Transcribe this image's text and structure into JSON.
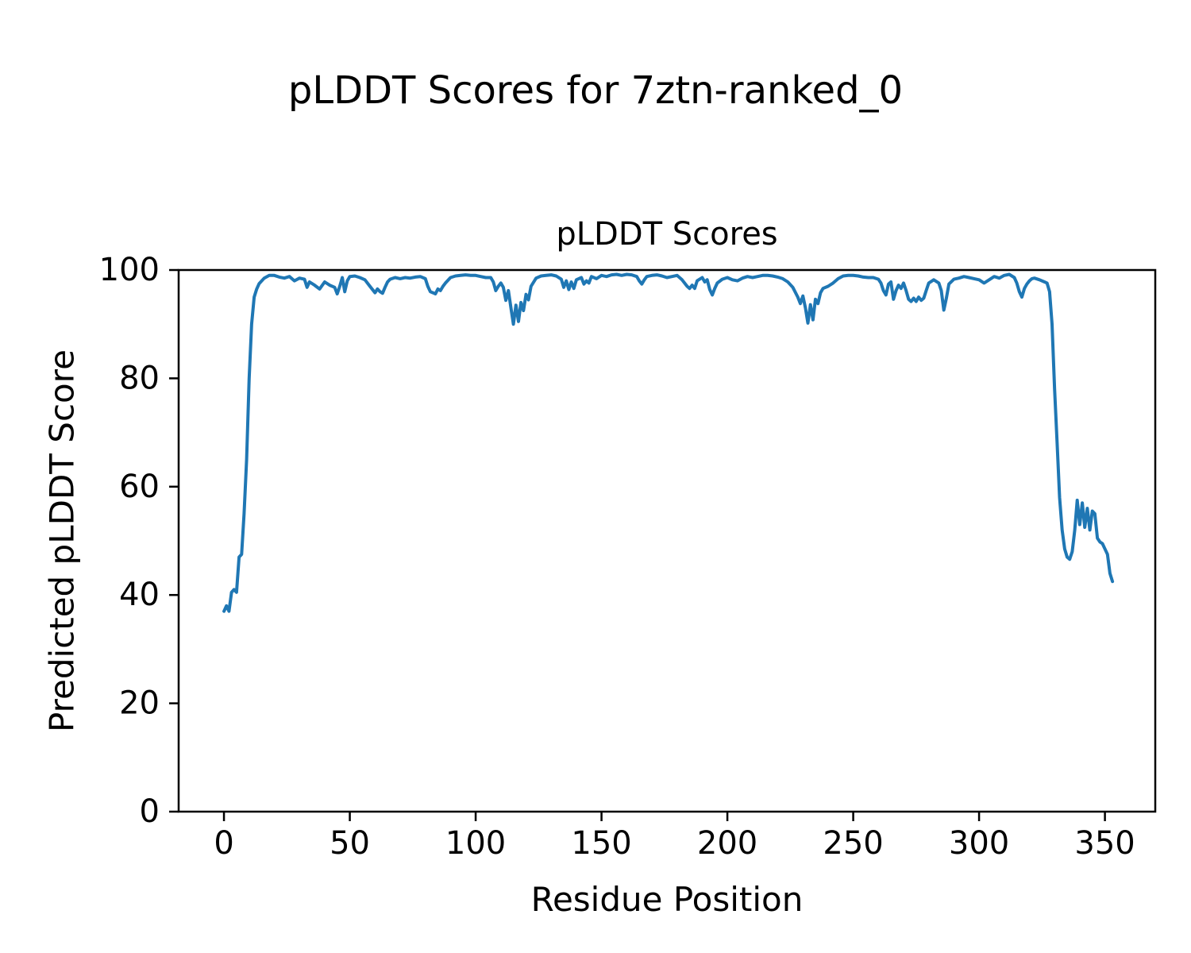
{
  "figure": {
    "title": "pLDDT Scores for 7ztn-ranked_0"
  },
  "chart_data": {
    "type": "line",
    "title": "pLDDT Scores",
    "xlabel": "Residue Position",
    "ylabel": "Predicted pLDDT Score",
    "xlim": [
      -18,
      370
    ],
    "ylim": [
      0,
      100
    ],
    "x_ticks": [
      0,
      50,
      100,
      150,
      200,
      250,
      300,
      350
    ],
    "y_ticks": [
      0,
      20,
      40,
      60,
      80,
      100
    ],
    "grid": false,
    "legend_position": "none",
    "line_color": "#1f77b4",
    "line_width": 4,
    "series": [
      {
        "name": "pLDDT",
        "points": [
          [
            0,
            37
          ],
          [
            1,
            38
          ],
          [
            2,
            37
          ],
          [
            3,
            40.5
          ],
          [
            4,
            41
          ],
          [
            5,
            40.5
          ],
          [
            6,
            47
          ],
          [
            7,
            47.5
          ],
          [
            8,
            55
          ],
          [
            9,
            65
          ],
          [
            10,
            80
          ],
          [
            11,
            90
          ],
          [
            12,
            95
          ],
          [
            13,
            96.5
          ],
          [
            14,
            97.5
          ],
          [
            16,
            98.5
          ],
          [
            18,
            99
          ],
          [
            20,
            99
          ],
          [
            22,
            98.7
          ],
          [
            24,
            98.5
          ],
          [
            26,
            98.8
          ],
          [
            28,
            98
          ],
          [
            30,
            98.5
          ],
          [
            32,
            98.3
          ],
          [
            33,
            96.8
          ],
          [
            34,
            97.8
          ],
          [
            36,
            97.2
          ],
          [
            38,
            96.5
          ],
          [
            40,
            97.8
          ],
          [
            42,
            97.2
          ],
          [
            44,
            96.8
          ],
          [
            45,
            95.6
          ],
          [
            46,
            97
          ],
          [
            47,
            98.6
          ],
          [
            48,
            96
          ],
          [
            49,
            98
          ],
          [
            50,
            98.8
          ],
          [
            52,
            98.9
          ],
          [
            54,
            98.6
          ],
          [
            56,
            98.2
          ],
          [
            58,
            97
          ],
          [
            60,
            95.8
          ],
          [
            61,
            96.5
          ],
          [
            62,
            96
          ],
          [
            63,
            95.7
          ],
          [
            64,
            96.8
          ],
          [
            65,
            97.8
          ],
          [
            66,
            98.3
          ],
          [
            68,
            98.6
          ],
          [
            70,
            98.4
          ],
          [
            72,
            98.6
          ],
          [
            74,
            98.5
          ],
          [
            76,
            98.7
          ],
          [
            78,
            98.8
          ],
          [
            80,
            98.4
          ],
          [
            81,
            97
          ],
          [
            82,
            96
          ],
          [
            83,
            95.8
          ],
          [
            84,
            95.6
          ],
          [
            85,
            96.5
          ],
          [
            86,
            96.2
          ],
          [
            87,
            97
          ],
          [
            88,
            97.6
          ],
          [
            90,
            98.6
          ],
          [
            92,
            98.9
          ],
          [
            94,
            99
          ],
          [
            96,
            99.1
          ],
          [
            98,
            99
          ],
          [
            100,
            99
          ],
          [
            102,
            98.8
          ],
          [
            104,
            98.6
          ],
          [
            106,
            98.6
          ],
          [
            107,
            97.8
          ],
          [
            108,
            96.2
          ],
          [
            109,
            97
          ],
          [
            110,
            97.6
          ],
          [
            111,
            96.8
          ],
          [
            112,
            94.4
          ],
          [
            113,
            96.2
          ],
          [
            114,
            93
          ],
          [
            115,
            90
          ],
          [
            116,
            93.5
          ],
          [
            117,
            90.5
          ],
          [
            118,
            94
          ],
          [
            119,
            92.5
          ],
          [
            120,
            95.5
          ],
          [
            121,
            94.5
          ],
          [
            122,
            97
          ],
          [
            124,
            98.5
          ],
          [
            126,
            98.9
          ],
          [
            128,
            99
          ],
          [
            130,
            99.1
          ],
          [
            132,
            98.9
          ],
          [
            134,
            98.3
          ],
          [
            135,
            96.8
          ],
          [
            136,
            98
          ],
          [
            137,
            96.4
          ],
          [
            138,
            97.8
          ],
          [
            139,
            96.6
          ],
          [
            140,
            98.2
          ],
          [
            142,
            98.6
          ],
          [
            143,
            97.4
          ],
          [
            144,
            98
          ],
          [
            145,
            97.6
          ],
          [
            146,
            98.8
          ],
          [
            148,
            98.4
          ],
          [
            150,
            99
          ],
          [
            152,
            98.8
          ],
          [
            154,
            99.1
          ],
          [
            156,
            99.2
          ],
          [
            158,
            99
          ],
          [
            160,
            99.2
          ],
          [
            162,
            99.1
          ],
          [
            164,
            98.8
          ],
          [
            165,
            98
          ],
          [
            166,
            97.4
          ],
          [
            167,
            98.2
          ],
          [
            168,
            98.8
          ],
          [
            170,
            99
          ],
          [
            172,
            99.1
          ],
          [
            174,
            98.9
          ],
          [
            176,
            98.6
          ],
          [
            178,
            98.8
          ],
          [
            180,
            99
          ],
          [
            182,
            98.2
          ],
          [
            184,
            97
          ],
          [
            185,
            96.6
          ],
          [
            186,
            97.2
          ],
          [
            187,
            96.6
          ],
          [
            188,
            98
          ],
          [
            190,
            98.6
          ],
          [
            191,
            97.8
          ],
          [
            192,
            98.2
          ],
          [
            193,
            96.4
          ],
          [
            194,
            95.4
          ],
          [
            195,
            96.6
          ],
          [
            196,
            97.6
          ],
          [
            198,
            98.3
          ],
          [
            200,
            98.6
          ],
          [
            202,
            98.2
          ],
          [
            204,
            98
          ],
          [
            206,
            98.5
          ],
          [
            208,
            98.8
          ],
          [
            210,
            98.6
          ],
          [
            212,
            98.8
          ],
          [
            214,
            99
          ],
          [
            216,
            99
          ],
          [
            218,
            98.9
          ],
          [
            220,
            98.7
          ],
          [
            222,
            98.4
          ],
          [
            224,
            97.8
          ],
          [
            226,
            96.8
          ],
          [
            228,
            95
          ],
          [
            229,
            93.8
          ],
          [
            230,
            95.2
          ],
          [
            231,
            93
          ],
          [
            232,
            90.2
          ],
          [
            233,
            93.6
          ],
          [
            234,
            90.8
          ],
          [
            235,
            94.6
          ],
          [
            236,
            93.8
          ],
          [
            237,
            95.8
          ],
          [
            238,
            96.6
          ],
          [
            240,
            97
          ],
          [
            242,
            97.6
          ],
          [
            244,
            98.4
          ],
          [
            246,
            98.9
          ],
          [
            248,
            99
          ],
          [
            250,
            99
          ],
          [
            252,
            98.9
          ],
          [
            254,
            98.7
          ],
          [
            256,
            98.6
          ],
          [
            258,
            98.6
          ],
          [
            260,
            98.3
          ],
          [
            261,
            97.6
          ],
          [
            262,
            96.2
          ],
          [
            263,
            95.4
          ],
          [
            264,
            97.4
          ],
          [
            265,
            97.8
          ],
          [
            266,
            94.6
          ],
          [
            267,
            96.2
          ],
          [
            268,
            97.2
          ],
          [
            269,
            96.6
          ],
          [
            270,
            97.6
          ],
          [
            271,
            96.2
          ],
          [
            272,
            94.6
          ],
          [
            273,
            94.2
          ],
          [
            274,
            94.8
          ],
          [
            275,
            94.2
          ],
          [
            276,
            95
          ],
          [
            277,
            94.4
          ],
          [
            278,
            94.8
          ],
          [
            279,
            96.2
          ],
          [
            280,
            97.6
          ],
          [
            282,
            98.2
          ],
          [
            284,
            97.6
          ],
          [
            285,
            96.2
          ],
          [
            286,
            92.6
          ],
          [
            287,
            94.8
          ],
          [
            288,
            97.4
          ],
          [
            290,
            98.3
          ],
          [
            292,
            98.5
          ],
          [
            294,
            98.8
          ],
          [
            296,
            98.6
          ],
          [
            298,
            98.4
          ],
          [
            300,
            98.2
          ],
          [
            302,
            97.6
          ],
          [
            304,
            98.2
          ],
          [
            306,
            98.8
          ],
          [
            308,
            98.5
          ],
          [
            310,
            99
          ],
          [
            312,
            99.2
          ],
          [
            314,
            98.6
          ],
          [
            315,
            97.6
          ],
          [
            316,
            96
          ],
          [
            317,
            95
          ],
          [
            318,
            96.6
          ],
          [
            319,
            97.4
          ],
          [
            320,
            98
          ],
          [
            321,
            98.4
          ],
          [
            322,
            98.5
          ],
          [
            324,
            98.2
          ],
          [
            326,
            97.8
          ],
          [
            327,
            97.6
          ],
          [
            328,
            96
          ],
          [
            329,
            90
          ],
          [
            330,
            78
          ],
          [
            331,
            68
          ],
          [
            332,
            58
          ],
          [
            333,
            52
          ],
          [
            334,
            48.5
          ],
          [
            335,
            47
          ],
          [
            336,
            46.6
          ],
          [
            337,
            48
          ],
          [
            338,
            52
          ],
          [
            339,
            57.5
          ],
          [
            340,
            53
          ],
          [
            341,
            57
          ],
          [
            342,
            52.5
          ],
          [
            343,
            56
          ],
          [
            344,
            52
          ],
          [
            345,
            55.5
          ],
          [
            346,
            55
          ],
          [
            347,
            50.5
          ],
          [
            348,
            49.8
          ],
          [
            349,
            49.5
          ],
          [
            350,
            48.5
          ],
          [
            351,
            47.5
          ],
          [
            352,
            44
          ],
          [
            353,
            42.5
          ]
        ]
      }
    ]
  }
}
